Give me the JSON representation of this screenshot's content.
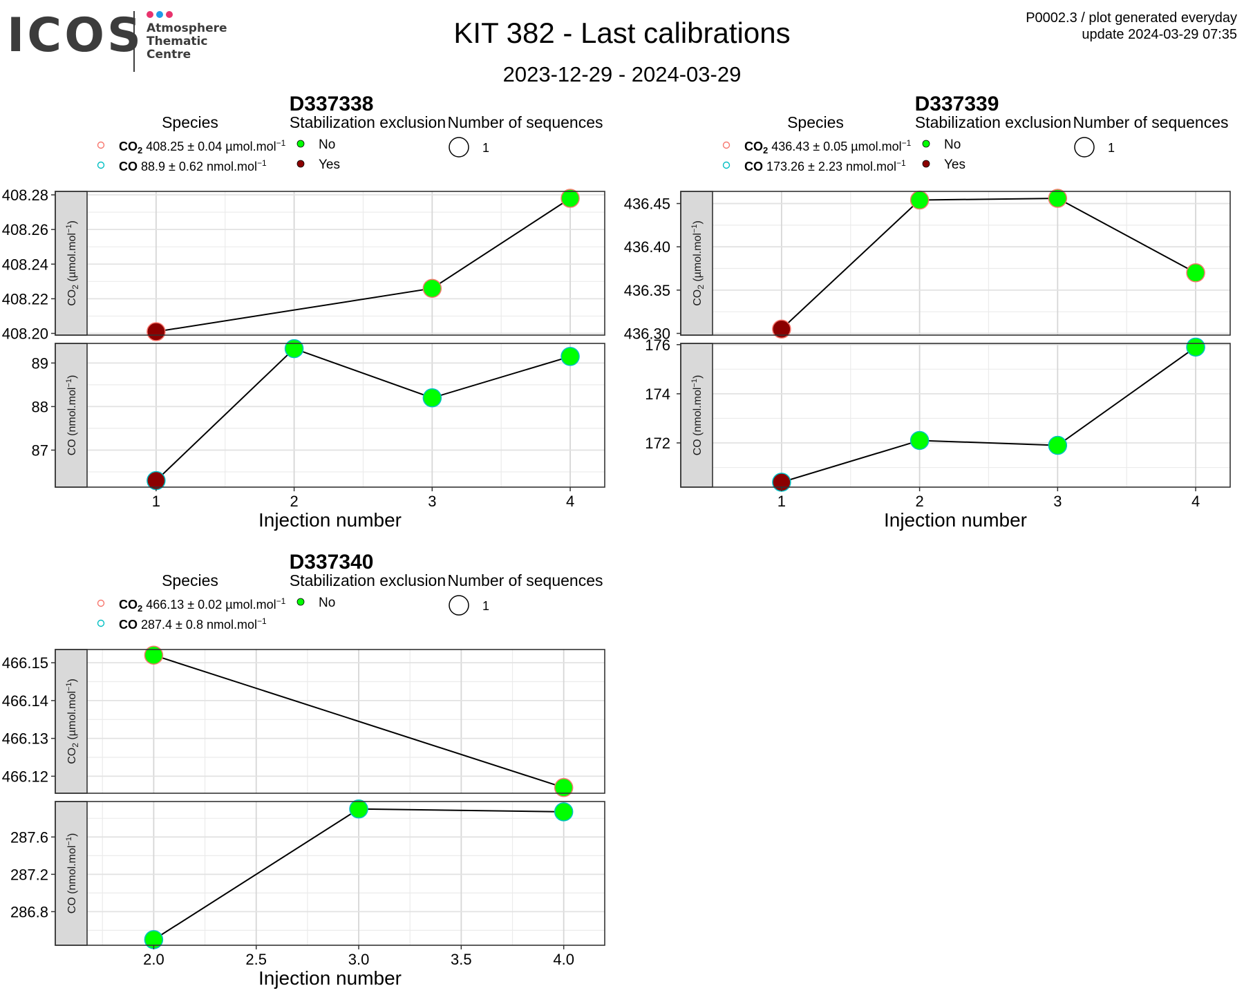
{
  "header": {
    "logo": {
      "text": "ICOS",
      "subtitle_lines": [
        "Atmosphere",
        "Thematic",
        "Centre"
      ],
      "dot_colors": [
        "#e8336d",
        "#1e9be9",
        "#e8336d"
      ]
    },
    "title": "KIT 382 - Last calibrations",
    "date_range": "2023-12-29 - 2024-03-29",
    "note_line1": "P0002.3 / plot generated everyday",
    "note_line2": "update  2024-03-29 07:35"
  },
  "legend_titles": {
    "species": "Species",
    "stabilization": "Stabilization exclusion",
    "sequences": "Number of sequences"
  },
  "colors": {
    "no": "#00ff00",
    "yes": "#8b0000",
    "co2_outline": "#f8766d",
    "co_outline": "#00bfc4",
    "strip_fill": "#d9d9d9"
  },
  "chart_data": [
    {
      "type": "line",
      "title": "D337338",
      "xlabel": "Injection number",
      "xlim": [
        0.5,
        4.25
      ],
      "x_ticks": [
        1,
        2,
        3,
        4
      ],
      "x_tick_labels": [
        "1",
        "2",
        "3",
        "4"
      ],
      "legend": {
        "co2_name": "CO",
        "co2_sub": "2",
        "co2_value": "408.25",
        "co2_unc": "0.04",
        "co2_unit": "µmol.mol",
        "co_name": "CO",
        "co_value": "88.9",
        "co_unc": "0.62",
        "co_unit": "nmol.mol",
        "stabilization": [
          "No",
          "Yes"
        ],
        "sequences": [
          "1"
        ]
      },
      "panels": [
        {
          "strip": "CO2 (µmol.mol-1)",
          "strip_main": "CO",
          "strip_sub": "2",
          "strip_rest": " (µmol.mol",
          "ylim": [
            408.199,
            408.282
          ],
          "y_ticks": [
            408.2,
            408.22,
            408.24,
            408.26,
            408.28
          ],
          "y_tick_labels": [
            "408.20",
            "408.22",
            "408.24",
            "408.26",
            "408.28"
          ],
          "x": [
            1,
            3,
            4
          ],
          "y": [
            408.201,
            408.226,
            408.278
          ],
          "excluded": [
            "Yes",
            "No",
            "No"
          ]
        },
        {
          "strip": "CO (nmol.mol-1)",
          "strip_main": "CO",
          "strip_sub": "",
          "strip_rest": " (nmol.mol",
          "ylim": [
            86.15,
            89.45
          ],
          "y_ticks": [
            87,
            88,
            89
          ],
          "y_tick_labels": [
            "87",
            "88",
            "89"
          ],
          "x": [
            1,
            2,
            3,
            4
          ],
          "y": [
            86.3,
            89.33,
            88.2,
            89.15
          ],
          "excluded": [
            "Yes",
            "No",
            "No",
            "No"
          ]
        }
      ]
    },
    {
      "type": "line",
      "title": "D337339",
      "xlabel": "Injection number",
      "xlim": [
        0.5,
        4.25
      ],
      "x_ticks": [
        1,
        2,
        3,
        4
      ],
      "x_tick_labels": [
        "1",
        "2",
        "3",
        "4"
      ],
      "legend": {
        "co2_name": "CO",
        "co2_sub": "2",
        "co2_value": "436.43",
        "co2_unc": "0.05",
        "co2_unit": "µmol.mol",
        "co_name": "CO",
        "co_value": "173.26",
        "co_unc": "2.23",
        "co_unit": "nmol.mol",
        "stabilization": [
          "No",
          "Yes"
        ],
        "sequences": [
          "1"
        ]
      },
      "panels": [
        {
          "strip": "CO2 (µmol.mol-1)",
          "strip_main": "CO",
          "strip_sub": "2",
          "strip_rest": " (µmol.mol",
          "ylim": [
            436.298,
            436.464
          ],
          "y_ticks": [
            436.3,
            436.35,
            436.4,
            436.45
          ],
          "y_tick_labels": [
            "436.30",
            "436.35",
            "436.40",
            "436.45"
          ],
          "x": [
            1,
            2,
            3,
            4
          ],
          "y": [
            436.305,
            436.454,
            436.456,
            436.37
          ],
          "excluded": [
            "Yes",
            "No",
            "No",
            "No"
          ]
        },
        {
          "strip": "CO (nmol.mol-1)",
          "strip_main": "CO",
          "strip_sub": "",
          "strip_rest": " (nmol.mol",
          "ylim": [
            170.2,
            176.05
          ],
          "y_ticks": [
            172,
            174,
            176
          ],
          "y_tick_labels": [
            "172",
            "174",
            "176"
          ],
          "x": [
            1,
            2,
            3,
            4
          ],
          "y": [
            170.4,
            172.1,
            171.9,
            175.9
          ],
          "excluded": [
            "Yes",
            "No",
            "No",
            "No"
          ]
        }
      ]
    },
    {
      "type": "line",
      "title": "D337340",
      "xlabel": "Injection number",
      "xlim": [
        1.675,
        4.2
      ],
      "x_ticks": [
        2.0,
        2.5,
        3.0,
        3.5,
        4.0
      ],
      "x_tick_labels": [
        "2.0",
        "2.5",
        "3.0",
        "3.5",
        "4.0"
      ],
      "legend": {
        "co2_name": "CO",
        "co2_sub": "2",
        "co2_value": "466.13",
        "co2_unc": "0.02",
        "co2_unit": "µmol.mol",
        "co_name": "CO",
        "co_value": "287.4",
        "co_unc": "0.8",
        "co_unit": "nmol.mol",
        "stabilization": [
          "No"
        ],
        "sequences": [
          "1"
        ]
      },
      "panels": [
        {
          "strip": "CO2 (µmol.mol-1)",
          "strip_main": "CO",
          "strip_sub": "2",
          "strip_rest": " (µmol.mol",
          "ylim": [
            466.1155,
            466.1535
          ],
          "y_ticks": [
            466.12,
            466.13,
            466.14,
            466.15
          ],
          "y_tick_labels": [
            "466.12",
            "466.13",
            "466.14",
            "466.15"
          ],
          "x": [
            2,
            4
          ],
          "y": [
            466.152,
            466.117
          ],
          "excluded": [
            "No",
            "No"
          ]
        },
        {
          "strip": "CO (nmol.mol-1)",
          "strip_main": "CO",
          "strip_sub": "",
          "strip_rest": " (nmol.mol",
          "ylim": [
            286.44,
            287.98
          ],
          "y_ticks": [
            286.8,
            287.2,
            287.6
          ],
          "y_tick_labels": [
            "286.8",
            "287.2",
            "287.6"
          ],
          "x": [
            2,
            3,
            4
          ],
          "y": [
            286.5,
            287.9,
            287.87
          ],
          "excluded": [
            "No",
            "No",
            "No"
          ]
        }
      ]
    }
  ]
}
